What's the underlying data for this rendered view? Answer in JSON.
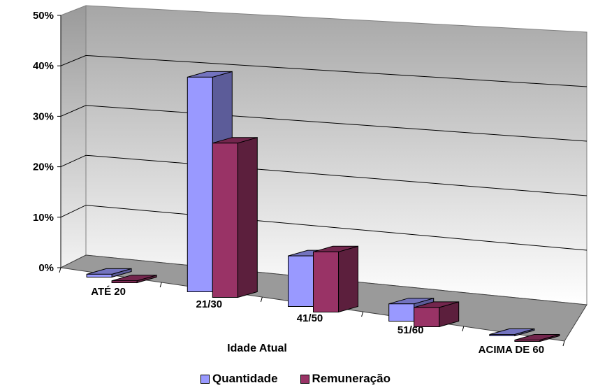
{
  "chart_data": {
    "type": "bar",
    "subtype": "3d-clustered",
    "categories": [
      "ATÉ 20",
      "21/30",
      "41/50",
      "51/60",
      "ACIMA DE 60"
    ],
    "series": [
      {
        "name": "Quantidade",
        "values": [
          0.6,
          44.5,
          10.5,
          3.6,
          0.2
        ],
        "color": "#9999ff"
      },
      {
        "name": "Remuneração",
        "values": [
          0.4,
          32.0,
          12.5,
          4.0,
          0.2
        ],
        "color": "#993366"
      }
    ],
    "xlabel": "Idade Atual",
    "ylabel": "",
    "ylim": [
      0,
      50
    ],
    "yticks": [
      "0%",
      "10%",
      "20%",
      "30%",
      "40%",
      "50%"
    ],
    "grid": true,
    "legend_position": "bottom"
  }
}
